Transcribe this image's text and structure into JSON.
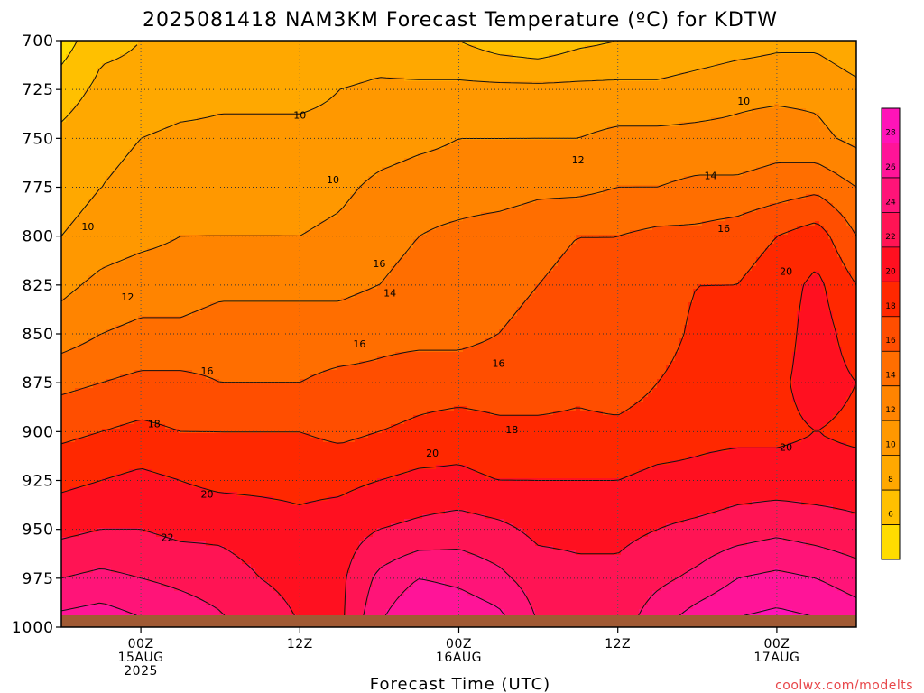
{
  "chart_data": {
    "type": "heatmap",
    "title": "2025081418 NAM3KM Forecast Temperature (ºC) for KDTW",
    "xlabel": "Forecast Time (UTC)",
    "ylabel": "",
    "y_axis": {
      "label_values": [
        "700",
        "725",
        "750",
        "775",
        "800",
        "825",
        "850",
        "875",
        "900",
        "925",
        "950",
        "975",
        "1000"
      ],
      "range": [
        1000,
        700
      ],
      "grid": true
    },
    "x_axis": {
      "range_hours": [
        -6,
        54
      ],
      "ticks": [
        {
          "hour": 0,
          "lines": [
            "00Z",
            "15AUG",
            "2025"
          ]
        },
        {
          "hour": 12,
          "lines": [
            "12Z"
          ]
        },
        {
          "hour": 24,
          "lines": [
            "00Z",
            "16AUG"
          ]
        },
        {
          "hour": 36,
          "lines": [
            "12Z"
          ]
        },
        {
          "hour": 48,
          "lines": [
            "00Z",
            "17AUG"
          ]
        }
      ],
      "grid": true
    },
    "units": "ºC",
    "contour_interval": 2,
    "sample_times_hours": [
      -6,
      -3,
      0,
      3,
      6,
      9,
      12,
      15,
      18,
      21,
      24,
      27,
      30,
      33,
      36,
      39,
      42,
      45,
      48,
      51,
      54
    ],
    "series": [
      {
        "pressure_hPa": 700,
        "values": [
          5.0,
          7.5,
          8.0,
          8.0,
          8.0,
          8.0,
          8.0,
          8.0,
          8.5,
          8.0,
          8.0,
          7.0,
          6.5,
          7.5,
          8.0,
          8.0,
          8.5,
          9.0,
          9.5,
          9.5,
          8.5
        ]
      },
      {
        "pressure_hPa": 725,
        "values": [
          7.0,
          8.5,
          8.5,
          9.0,
          9.5,
          9.5,
          9.5,
          10.0,
          10.5,
          10.5,
          10.5,
          10.5,
          10.5,
          10.5,
          10.5,
          10.5,
          11.0,
          11.5,
          11.5,
          11.5,
          10.5
        ]
      },
      {
        "pressure_hPa": 750,
        "values": [
          8.5,
          9.5,
          10.0,
          10.5,
          10.5,
          10.5,
          10.5,
          10.5,
          11.0,
          11.5,
          12.0,
          12.0,
          12.0,
          12.0,
          12.5,
          12.5,
          12.5,
          12.5,
          13.0,
          12.5,
          11.5
        ]
      },
      {
        "pressure_hPa": 775,
        "values": [
          9.0,
          10.0,
          10.5,
          11.0,
          11.5,
          11.5,
          11.0,
          11.5,
          12.5,
          13.0,
          13.0,
          13.0,
          13.5,
          13.5,
          14.0,
          14.0,
          14.5,
          14.5,
          15.0,
          15.5,
          14.0
        ]
      },
      {
        "pressure_hPa": 800,
        "values": [
          10.0,
          11.0,
          11.5,
          12.0,
          12.0,
          12.0,
          12.0,
          12.5,
          13.5,
          14.0,
          14.5,
          15.0,
          15.5,
          16.0,
          16.0,
          16.5,
          16.5,
          17.0,
          18.0,
          19.0,
          16.0
        ]
      },
      {
        "pressure_hPa": 825,
        "values": [
          11.5,
          12.5,
          13.0,
          13.0,
          13.5,
          13.5,
          13.5,
          13.5,
          14.0,
          14.5,
          15.0,
          15.5,
          16.0,
          16.5,
          16.5,
          17.0,
          18.0,
          18.0,
          19.0,
          20.5,
          18.0
        ]
      },
      {
        "pressure_hPa": 850,
        "values": [
          13.0,
          14.0,
          14.5,
          14.5,
          15.0,
          15.0,
          15.0,
          15.0,
          15.5,
          15.5,
          15.5,
          16.0,
          16.5,
          17.0,
          17.0,
          17.0,
          18.5,
          19.0,
          19.0,
          21.0,
          19.0
        ]
      },
      {
        "pressure_hPa": 875,
        "values": [
          15.5,
          16.0,
          16.5,
          16.5,
          16.0,
          16.0,
          16.0,
          16.5,
          16.5,
          17.0,
          17.0,
          17.0,
          17.0,
          17.5,
          17.0,
          18.0,
          19.0,
          19.0,
          19.5,
          21.0,
          20.0
        ]
      },
      {
        "pressure_hPa": 900,
        "values": [
          17.5,
          18.0,
          18.5,
          18.0,
          18.0,
          18.0,
          18.0,
          17.5,
          18.0,
          18.5,
          19.0,
          18.5,
          18.5,
          18.5,
          18.5,
          19.0,
          19.5,
          19.5,
          19.5,
          20.0,
          19.5
        ]
      },
      {
        "pressure_hPa": 925,
        "values": [
          19.5,
          20.0,
          20.5,
          20.0,
          19.5,
          19.5,
          19.5,
          19.5,
          20.0,
          20.5,
          20.5,
          20.0,
          20.0,
          20.0,
          20.0,
          20.5,
          20.5,
          21.0,
          21.0,
          21.0,
          21.0
        ]
      },
      {
        "pressure_hPa": 950,
        "values": [
          21.5,
          22.0,
          22.0,
          21.5,
          21.5,
          21.0,
          20.5,
          21.0,
          22.0,
          22.5,
          23.0,
          22.5,
          21.5,
          21.5,
          21.5,
          22.0,
          22.5,
          23.0,
          23.5,
          23.0,
          22.5
        ]
      },
      {
        "pressure_hPa": 975,
        "values": [
          24.0,
          24.5,
          24.0,
          23.5,
          23.0,
          22.0,
          21.5,
          21.5,
          24.5,
          26.0,
          25.5,
          24.5,
          23.0,
          22.5,
          22.5,
          23.5,
          24.5,
          26.0,
          26.5,
          26.0,
          25.0
        ]
      },
      {
        "pressure_hPa": 1000,
        "values": [
          27.0,
          27.5,
          26.5,
          25.5,
          24.5,
          23.0,
          22.0,
          21.5,
          26.0,
          28.5,
          28.0,
          27.0,
          24.0,
          23.5,
          23.0,
          25.5,
          27.5,
          28.5,
          29.0,
          28.5,
          27.5
        ]
      }
    ],
    "contour_labels": [
      {
        "text": "10",
        "hour": 12,
        "p": 738
      },
      {
        "text": "10",
        "hour": 45.5,
        "p": 731
      },
      {
        "text": "10",
        "hour": 14.5,
        "p": 771
      },
      {
        "text": "10",
        "hour": -4,
        "p": 795
      },
      {
        "text": "12",
        "hour": 33,
        "p": 761
      },
      {
        "text": "14",
        "hour": 43,
        "p": 769
      },
      {
        "text": "16",
        "hour": 18,
        "p": 814
      },
      {
        "text": "16",
        "hour": 44,
        "p": 796
      },
      {
        "text": "12",
        "hour": -1,
        "p": 831
      },
      {
        "text": "14",
        "hour": 18.8,
        "p": 829
      },
      {
        "text": "16",
        "hour": 5,
        "p": 869
      },
      {
        "text": "16",
        "hour": 16.5,
        "p": 855
      },
      {
        "text": "16",
        "hour": 27,
        "p": 865
      },
      {
        "text": "20",
        "hour": 48.7,
        "p": 818
      },
      {
        "text": "18",
        "hour": 1,
        "p": 896
      },
      {
        "text": "18",
        "hour": 28,
        "p": 899
      },
      {
        "text": "20",
        "hour": 22,
        "p": 911
      },
      {
        "text": "20",
        "hour": 48.7,
        "p": 908
      },
      {
        "text": "20",
        "hour": 5,
        "p": 932
      },
      {
        "text": "22",
        "hour": 2,
        "p": 954
      }
    ],
    "colorbar": {
      "labels": [
        "6",
        "8",
        "10",
        "12",
        "14",
        "16",
        "18",
        "20",
        "22",
        "24",
        "26",
        "28"
      ],
      "levels": [
        4,
        6,
        8,
        10,
        12,
        14,
        16,
        18,
        20,
        22,
        24,
        26,
        28,
        30
      ],
      "colors": [
        "#ffdc00",
        "#ffc000",
        "#ffa800",
        "#ff9800",
        "#ff8400",
        "#ff6e00",
        "#ff4e00",
        "#ff2800",
        "#ff1020",
        "#ff1454",
        "#ff1478",
        "#ff1498",
        "#ff14b8"
      ]
    },
    "ground_color": "#a05a34",
    "credit": "coolwx.com/modelts"
  }
}
